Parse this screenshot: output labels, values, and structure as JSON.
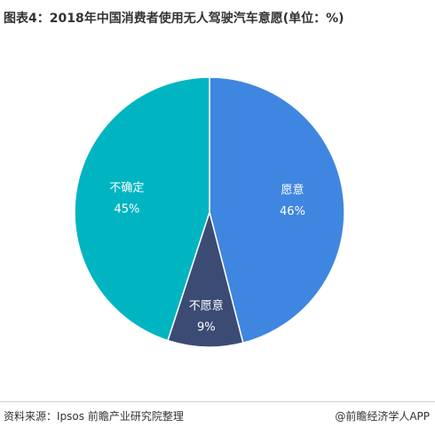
{
  "title": "图表4：2018年中国消费者使用无人驾驶汽车意愿(单位：%)",
  "footer": {
    "source": "资料来源：Ipsos 前瞻产业研究院整理",
    "brand": "@前瞻经济学人APP"
  },
  "chart_data": {
    "type": "pie",
    "slices": [
      {
        "label": "愿意",
        "value": 46,
        "value_label": "46%",
        "color": "#3f86e0"
      },
      {
        "label": "不愿意",
        "value": 9,
        "value_label": "9%",
        "color": "#3c4b73"
      },
      {
        "label": "不确定",
        "value": 45,
        "value_label": "45%",
        "color": "#00b5c1"
      }
    ],
    "start_angle_deg": 0,
    "direction": "clockwise-from-top",
    "legend": "none"
  }
}
